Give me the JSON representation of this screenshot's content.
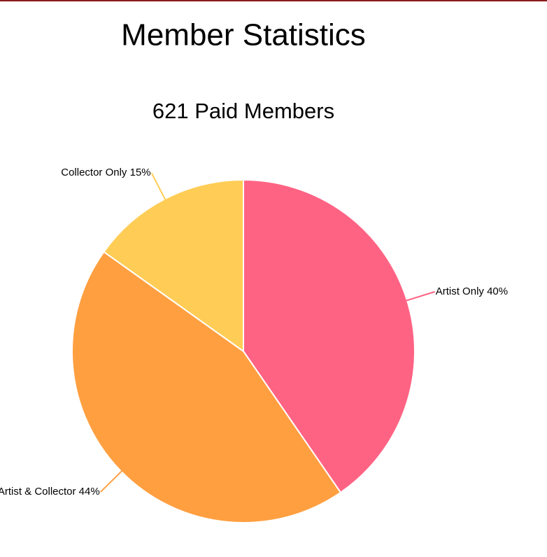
{
  "chart_data": {
    "type": "pie",
    "title": "Member Statistics",
    "subtitle": "621 Paid Members",
    "categories": [
      "Artist Only",
      "Artist & Collector",
      "Collector Only"
    ],
    "values": [
      40,
      44,
      15
    ],
    "value_labels": [
      "40%",
      "44%",
      "15%"
    ],
    "colors": [
      "#ff6384",
      "#ff9f40",
      "#ffcd56"
    ]
  }
}
